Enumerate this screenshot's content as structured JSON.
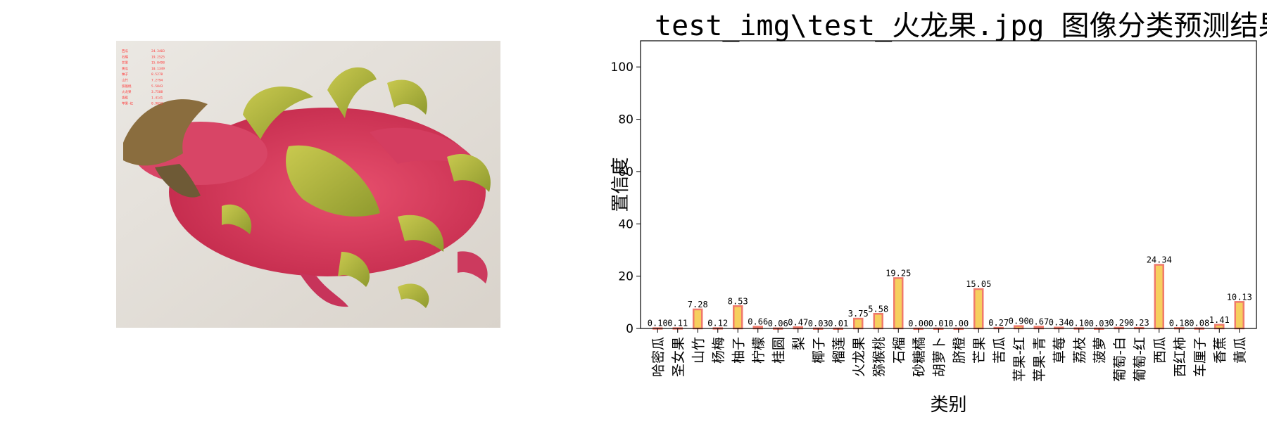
{
  "photo": {
    "subject": "dragon fruit photograph",
    "background_color": "#e6e2dc",
    "fruit_color": "#dc3a5c",
    "bract_color": "#b8b845",
    "overlay_lines": [
      {
        "label": "西瓜",
        "value": "24.3403"
      },
      {
        "label": "石榴",
        "value": "19.2525"
      },
      {
        "label": "芒果",
        "value": "15.0498"
      },
      {
        "label": "黄瓜",
        "value": "10.1349"
      },
      {
        "label": "柚子",
        "value": "8.5278"
      },
      {
        "label": "山竹",
        "value": "7.2794"
      },
      {
        "label": "猕猴桃",
        "value": "5.5843"
      },
      {
        "label": "火龙果",
        "value": "3.7508"
      },
      {
        "label": "香蕉",
        "value": "1.4141"
      },
      {
        "label": "苹果-红",
        "value": "0.9023"
      }
    ]
  },
  "chart_data": {
    "type": "bar",
    "title": "test_img\\test_火龙果.jpg 图像分类预测结果",
    "xlabel": "类别",
    "ylabel": "置信度",
    "ylim": [
      0,
      110
    ],
    "yticks": [
      0,
      20,
      40,
      60,
      80,
      100
    ],
    "grid": false,
    "bar_fill": "#f6cf5e",
    "bar_edge": "#f07a6b",
    "categories": [
      "哈密瓜",
      "圣女果",
      "山竹",
      "杨梅",
      "柚子",
      "柠檬",
      "桂圆",
      "梨",
      "椰子",
      "榴莲",
      "火龙果",
      "猕猴桃",
      "石榴",
      "砂糖橘",
      "胡萝卜",
      "脐橙",
      "芒果",
      "苦瓜",
      "苹果-红",
      "苹果-青",
      "草莓",
      "荔枝",
      "菠萝",
      "葡萄-白",
      "葡萄-红",
      "西瓜",
      "西红柿",
      "车厘子",
      "香蕉",
      "黄瓜"
    ],
    "values": [
      0.1,
      0.11,
      7.28,
      0.12,
      8.53,
      0.66,
      0.06,
      0.47,
      0.03,
      0.01,
      3.75,
      5.58,
      19.25,
      0.0,
      0.01,
      0.0,
      15.05,
      0.27,
      0.9,
      0.67,
      0.34,
      0.1,
      0.03,
      0.29,
      0.23,
      24.34,
      0.18,
      0.08,
      1.41,
      10.13
    ],
    "value_labels": [
      "0.10",
      "0.11",
      "7.28",
      "0.12",
      "8.53",
      "0.66",
      "0.06",
      "0.47",
      "0.03",
      "0.01",
      "3.75",
      "5.58",
      "19.25",
      "0.00",
      "0.01",
      "0.00",
      "15.05",
      "0.27",
      "0.90",
      "0.67",
      "0.34",
      "0.10",
      "0.03",
      "0.29",
      "0.23",
      "24.34",
      "0.18",
      "0.08",
      "1.41",
      "10.13"
    ]
  }
}
